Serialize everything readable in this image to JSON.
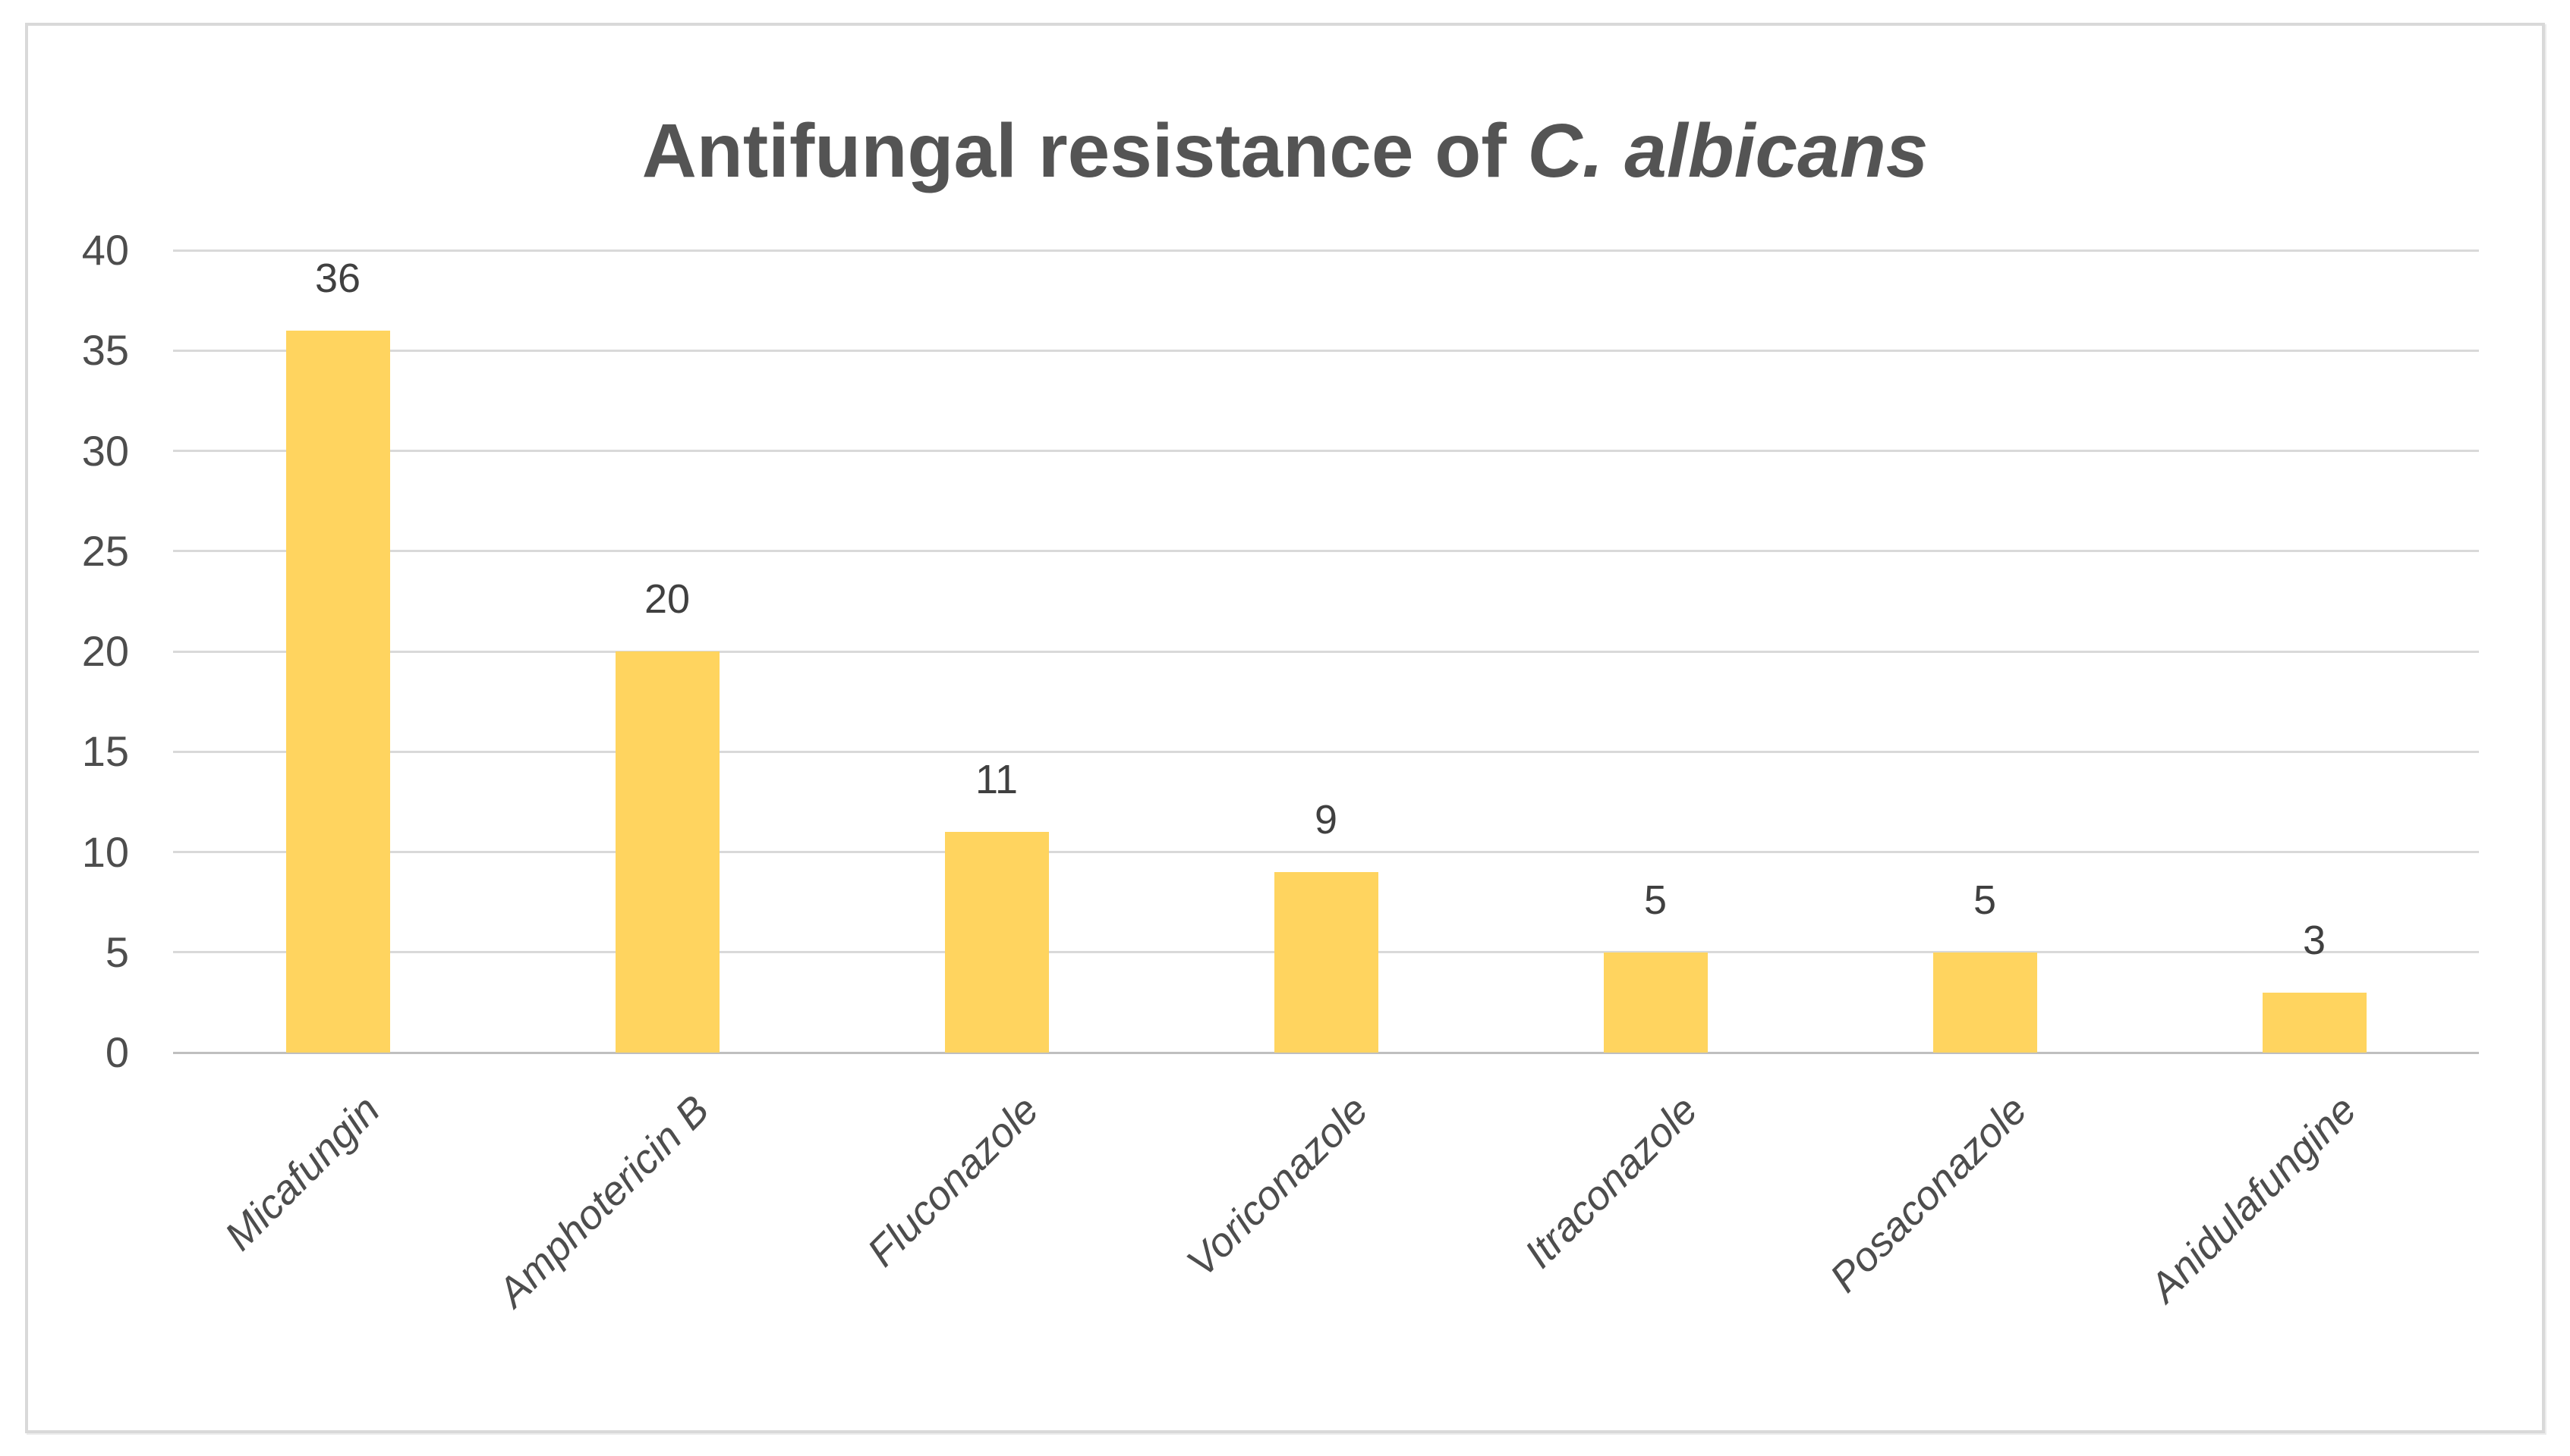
{
  "chart_data": {
    "type": "bar",
    "title": {
      "prefix": "Antifungal resistance of ",
      "italic": "C. albicans",
      "full": "Antifungal resistance of C. albicans"
    },
    "categories": [
      "Micafungin",
      "Amphotericin B",
      "Fluconazole",
      "Voriconazole",
      "Itraconazole",
      "Posaconazole",
      "Anidulafungine"
    ],
    "values": [
      36,
      20,
      11,
      9,
      5,
      5,
      3
    ],
    "xlabel": "",
    "ylabel": "",
    "ylim": [
      0,
      40
    ],
    "yticks": [
      0,
      5,
      10,
      15,
      20,
      25,
      30,
      35,
      40
    ],
    "grid": true,
    "legend": "none",
    "bar_color": "#FFD45F",
    "gridline_color": "#D9D9D9",
    "axis_line_color": "#BFBFBF",
    "label_color": "#404040",
    "title_color": "#545454",
    "frame_border_color": "#D9D9D9"
  }
}
